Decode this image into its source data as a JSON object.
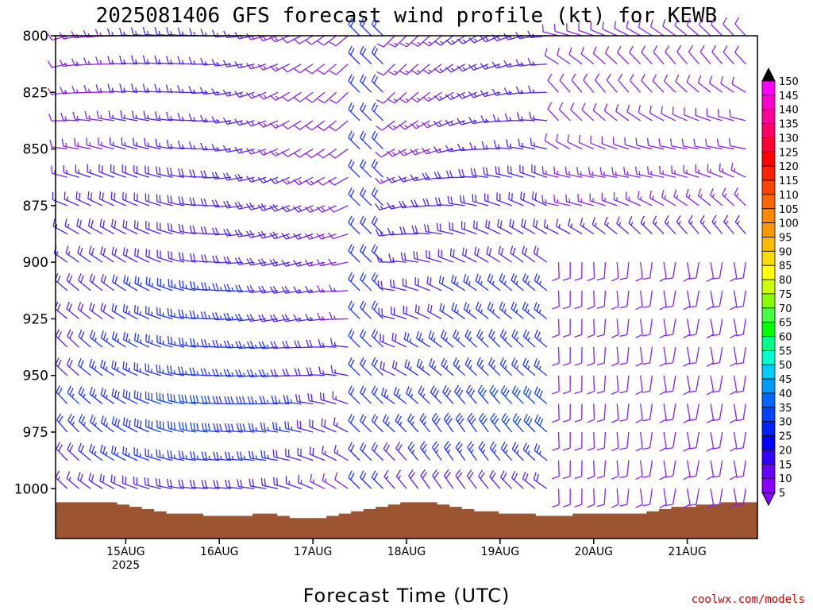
{
  "chart_data": {
    "type": "wind-barb time-height profile",
    "title": "2025081406 GFS forecast wind profile (kt) for KEWB",
    "xlabel": "Forecast Time (UTC)",
    "ylabel": "",
    "y_axis": {
      "quantity": "pressure (hPa)",
      "ticks": [
        800,
        825,
        850,
        875,
        900,
        925,
        950,
        975,
        1000
      ],
      "range": [
        800,
        1022
      ],
      "inverted": true
    },
    "x_axis": {
      "ticks": [
        {
          "label": "15AUG",
          "sub": "2025",
          "time": "2025-08-15T00Z"
        },
        {
          "label": "16AUG",
          "sub": "",
          "time": "2025-08-16T00Z"
        },
        {
          "label": "17AUG",
          "sub": "",
          "time": "2025-08-17T00Z"
        },
        {
          "label": "18AUG",
          "sub": "",
          "time": "2025-08-18T00Z"
        },
        {
          "label": "19AUG",
          "sub": "",
          "time": "2025-08-19T00Z"
        },
        {
          "label": "20AUG",
          "sub": "",
          "time": "2025-08-20T00Z"
        },
        {
          "label": "21AUG",
          "sub": "",
          "time": "2025-08-21T00Z"
        }
      ],
      "range": [
        "2025-08-14T06Z",
        "2025-08-21T18Z"
      ],
      "step_hours": 6
    },
    "colorbar": {
      "unit": "kt",
      "ticks": [
        150,
        145,
        140,
        135,
        130,
        125,
        120,
        115,
        110,
        105,
        100,
        95,
        90,
        85,
        80,
        75,
        70,
        65,
        60,
        55,
        50,
        45,
        40,
        35,
        30,
        25,
        20,
        15,
        10,
        5
      ],
      "colors": [
        "#000000",
        "#ff00ff",
        "#ff00cc",
        "#ff0099",
        "#ff0066",
        "#ff0033",
        "#ff0000",
        "#ff2200",
        "#ff4400",
        "#ff6600",
        "#ff8800",
        "#ff9900",
        "#ffbb00",
        "#ffdd00",
        "#ffff00",
        "#ccff00",
        "#88ff00",
        "#44ff44",
        "#00ff00",
        "#00ff88",
        "#00ffcc",
        "#00ccff",
        "#0099ff",
        "#0066ff",
        "#0044ff",
        "#0022ff",
        "#0000ff",
        "#3300ff",
        "#6600ff",
        "#8800ff"
      ]
    },
    "ground_pressure_hpa": [
      1006,
      1006,
      1006,
      1006,
      1006,
      1007,
      1008,
      1009,
      1010,
      1011,
      1011,
      1011,
      1012,
      1012,
      1012,
      1012,
      1011,
      1011,
      1012,
      1013,
      1013,
      1013,
      1012,
      1011,
      1010,
      1009,
      1008,
      1007,
      1006,
      1006,
      1006,
      1007,
      1008,
      1009,
      1010,
      1010,
      1011,
      1011,
      1011,
      1012,
      1012,
      1012,
      1011,
      1011,
      1011,
      1011,
      1011,
      1011,
      1010,
      1009,
      1008,
      1008,
      1007,
      1007,
      1006,
      1006,
      1006
    ],
    "levels_hpa": [
      800,
      812.5,
      825,
      837.5,
      850,
      862.5,
      875,
      887.5,
      900,
      912.5,
      925,
      937.5,
      950,
      962.5,
      975,
      987.5,
      1000
    ],
    "wind_direction_deg_by_level": [
      250,
      250,
      250,
      255,
      260,
      265,
      270,
      275,
      280,
      285,
      285,
      290,
      290,
      295,
      300,
      300,
      300
    ],
    "wind_speed_kt_by_level": [
      15,
      15,
      15,
      15,
      15,
      18,
      20,
      20,
      20,
      22,
      22,
      25,
      25,
      28,
      28,
      25,
      20
    ],
    "credit": "coolwx.com/models"
  }
}
